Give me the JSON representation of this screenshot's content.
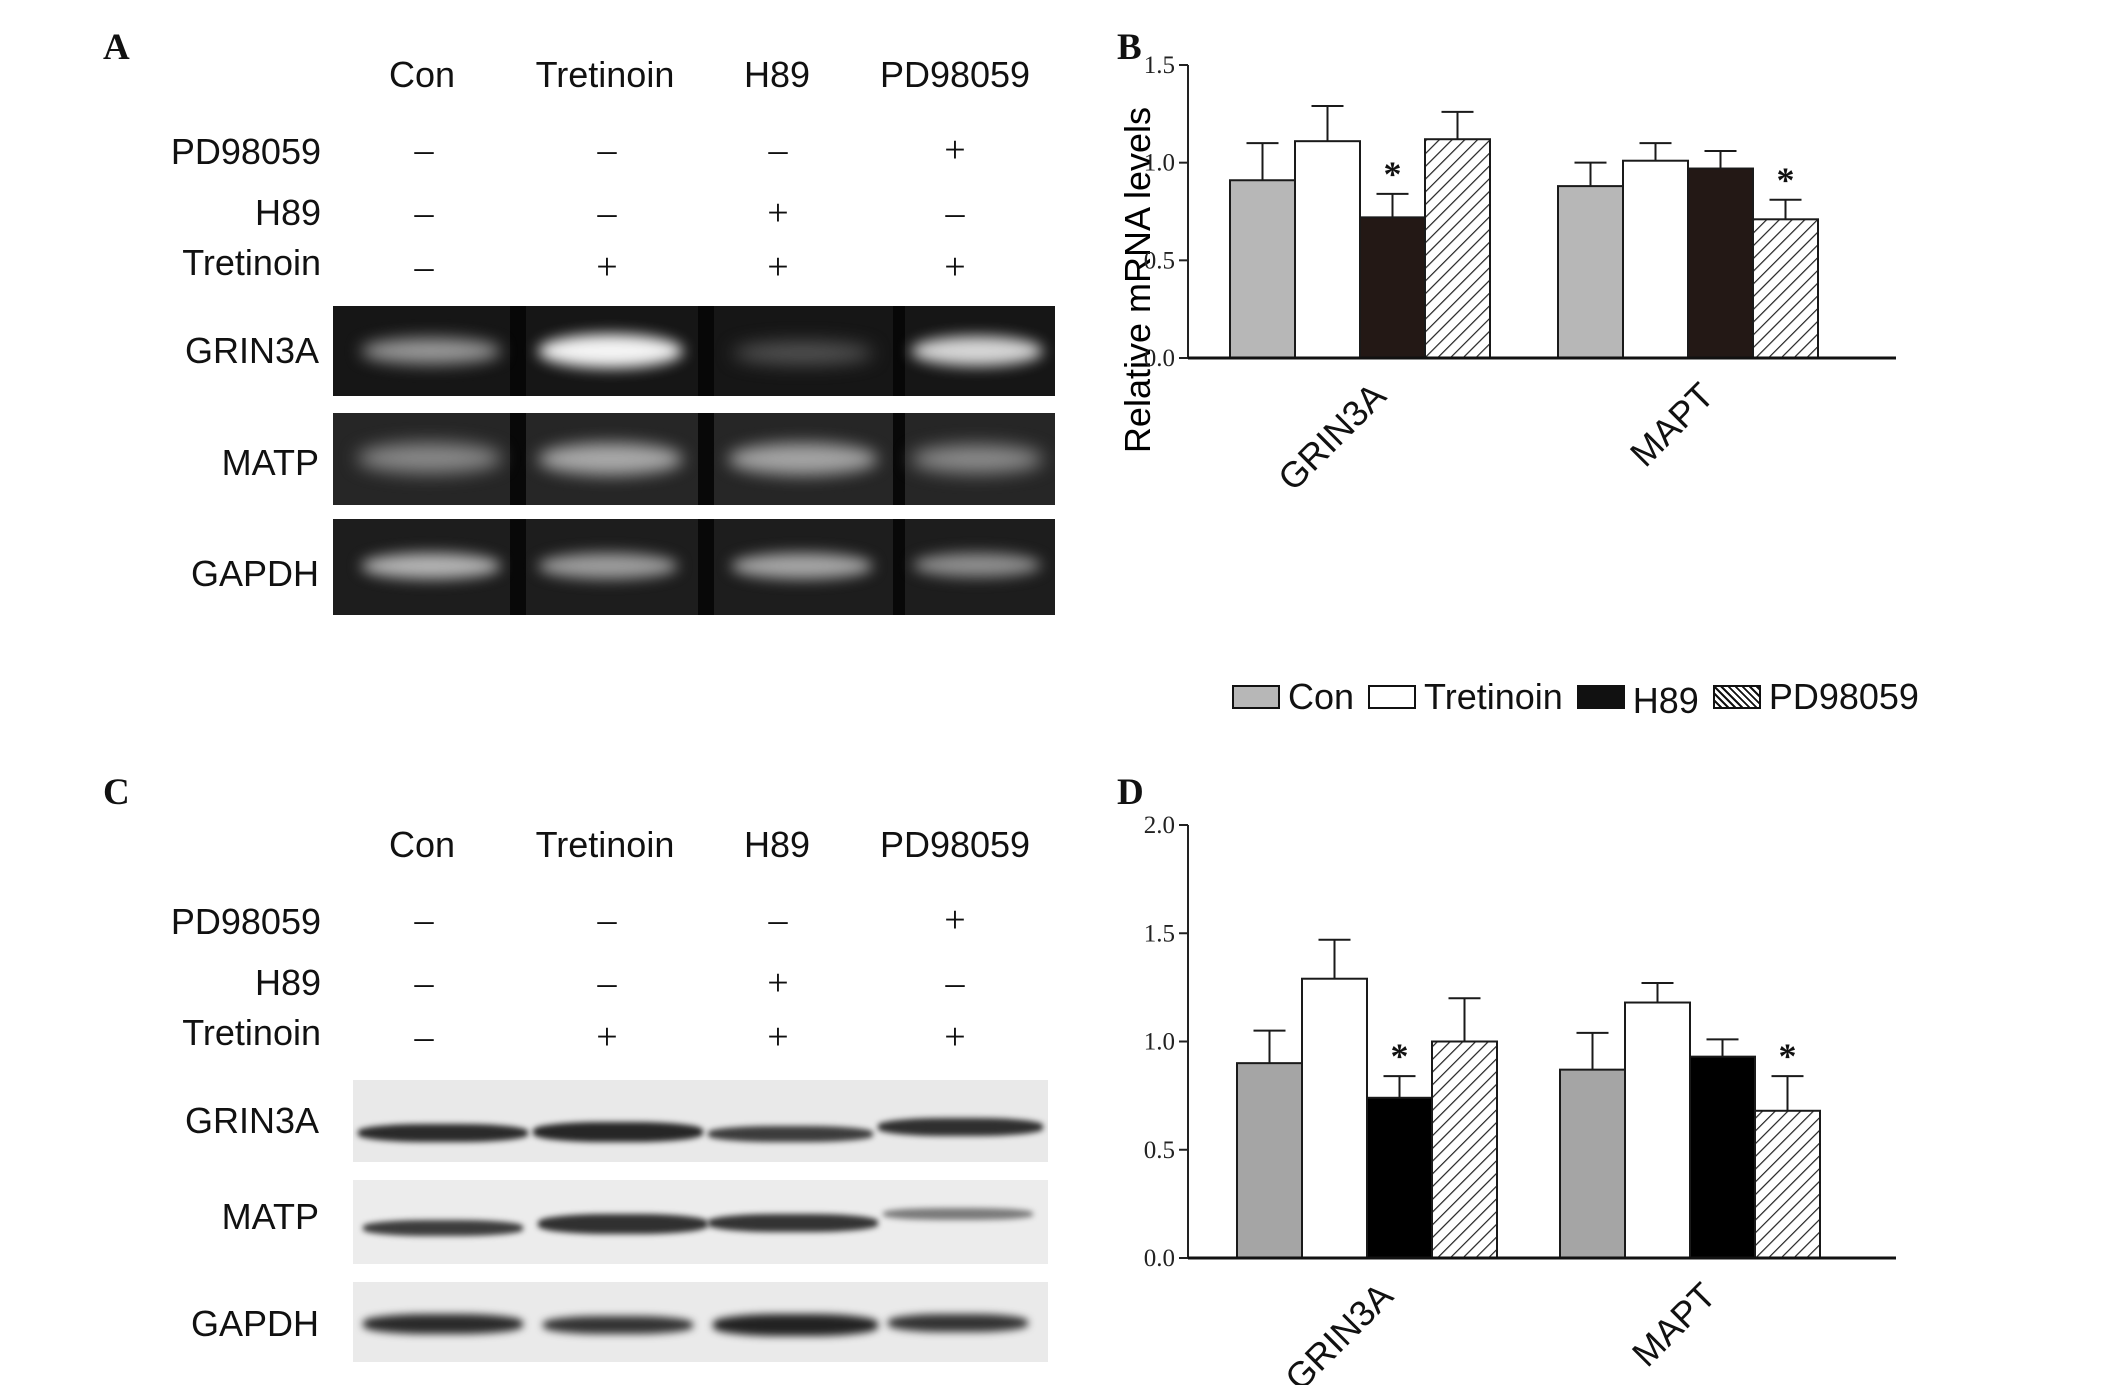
{
  "panel_a": {
    "letter": "A",
    "columns": [
      "Con",
      "Tretinoin",
      "H89",
      "PD98059"
    ],
    "rows": [
      {
        "label": "PD98059",
        "marks": [
          "–",
          "–",
          "–",
          "+"
        ]
      },
      {
        "label": "H89",
        "marks": [
          "–",
          "–",
          "+",
          "–"
        ]
      },
      {
        "label": "Tretinoin",
        "marks": [
          "–",
          "+",
          "+",
          "+"
        ]
      }
    ],
    "blot_labels": [
      "GRIN3A",
      "MATP",
      "GAPDH"
    ]
  },
  "panel_c": {
    "letter": "C",
    "columns": [
      "Con",
      "Tretinoin",
      "H89",
      "PD98059"
    ],
    "rows": [
      {
        "label": "PD98059",
        "marks": [
          "–",
          "–",
          "–",
          "+"
        ]
      },
      {
        "label": "H89",
        "marks": [
          "–",
          "–",
          "+",
          "–"
        ]
      },
      {
        "label": "Tretinoin",
        "marks": [
          "–",
          "+",
          "+",
          "+"
        ]
      }
    ],
    "blot_labels": [
      "GRIN3A",
      "MATP",
      "GAPDH"
    ]
  },
  "legend": {
    "entries": [
      {
        "name": "Con",
        "color": "#b7b7b7",
        "pattern": "solid"
      },
      {
        "name": "Tretinoin",
        "color": "#ffffff",
        "pattern": "solid"
      },
      {
        "name": "H89",
        "color": "#111111",
        "pattern": "solid"
      },
      {
        "name": "PD98059",
        "color": "#ffffff",
        "pattern": "hatch"
      }
    ]
  },
  "chart_data": [
    {
      "panel": "B",
      "type": "bar",
      "ylabel": "Relative mRNA levels",
      "ylim": [
        0,
        1.5
      ],
      "yticks": [
        "0.0",
        "0.5",
        "1.0",
        "1.5"
      ],
      "categories": [
        "GRIN3A",
        "MAPT"
      ],
      "series": [
        {
          "name": "Con",
          "color": "#b7b7b7",
          "values": [
            0.91,
            0.88
          ],
          "errors": [
            0.19,
            0.12
          ]
        },
        {
          "name": "Tretinoin",
          "color": "#ffffff",
          "values": [
            1.11,
            1.01
          ],
          "errors": [
            0.18,
            0.09
          ]
        },
        {
          "name": "H89",
          "color": "#231815",
          "values": [
            0.72,
            0.97
          ],
          "errors": [
            0.12,
            0.09
          ]
        },
        {
          "name": "PD98059",
          "color": "#ffffff",
          "pattern": "hatch",
          "values": [
            1.12,
            0.71
          ],
          "errors": [
            0.14,
            0.1
          ]
        }
      ],
      "significance": [
        {
          "category": "GRIN3A",
          "series": "H89",
          "label": "*"
        },
        {
          "category": "MAPT",
          "series": "PD98059",
          "label": "*"
        }
      ]
    },
    {
      "panel": "D",
      "type": "bar",
      "ylabel": "",
      "ylim": [
        0,
        2.0
      ],
      "yticks": [
        "0.0",
        "0.5",
        "1.0",
        "1.5",
        "2.0"
      ],
      "categories": [
        "GRIN3A",
        "MAPT"
      ],
      "series": [
        {
          "name": "Con",
          "color": "#a5a5a5",
          "values": [
            0.9,
            0.87
          ],
          "errors": [
            0.15,
            0.17
          ]
        },
        {
          "name": "Tretinoin",
          "color": "#ffffff",
          "values": [
            1.29,
            1.18
          ],
          "errors": [
            0.18,
            0.09
          ]
        },
        {
          "name": "H89",
          "color": "#000000",
          "values": [
            0.74,
            0.93
          ],
          "errors": [
            0.1,
            0.08
          ]
        },
        {
          "name": "PD98059",
          "color": "#ffffff",
          "pattern": "hatch",
          "values": [
            1.0,
            0.68
          ],
          "errors": [
            0.2,
            0.16
          ]
        }
      ],
      "significance": [
        {
          "category": "GRIN3A",
          "series": "H89",
          "label": "*"
        },
        {
          "category": "MAPT",
          "series": "PD98059",
          "label": "*"
        }
      ]
    }
  ]
}
